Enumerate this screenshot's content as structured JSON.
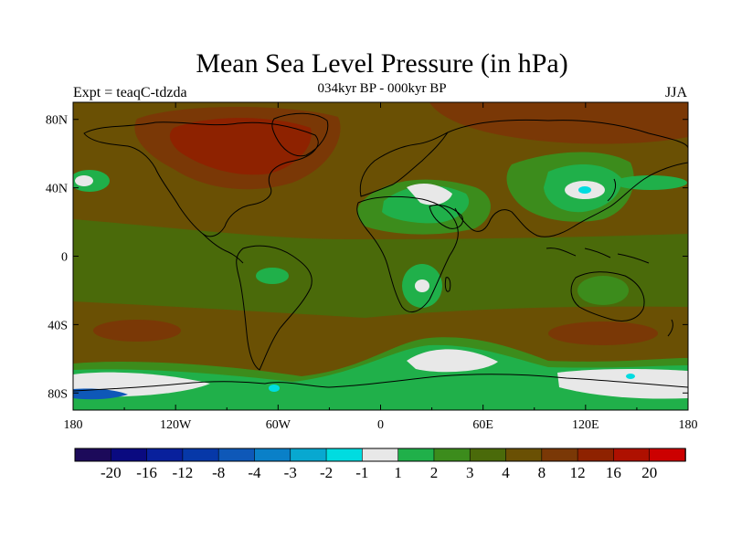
{
  "header": {
    "title": "Mean Sea Level Pressure (in hPa)",
    "subtitle": "034kyr BP - 000kyr BP",
    "experiment": "Expt = teaqC-tdzda",
    "season": "JJA"
  },
  "map": {
    "projection": "cylindrical equidistant",
    "lon_range": [
      -180,
      180
    ],
    "lat_range": [
      -90,
      90
    ],
    "x_ticks": [
      {
        "lon": -180,
        "label": "180"
      },
      {
        "lon": -120,
        "label": "120W"
      },
      {
        "lon": -60,
        "label": "60W"
      },
      {
        "lon": 0,
        "label": "0"
      },
      {
        "lon": 60,
        "label": "60E"
      },
      {
        "lon": 120,
        "label": "120E"
      },
      {
        "lon": 180,
        "label": "180"
      }
    ],
    "y_ticks": [
      {
        "lat": 80,
        "label": "80N"
      },
      {
        "lat": 40,
        "label": "40N"
      },
      {
        "lat": 0,
        "label": "0"
      },
      {
        "lat": -40,
        "label": "40S"
      },
      {
        "lat": -80,
        "label": "80S"
      }
    ]
  },
  "colorbar": {
    "colors": [
      "#1c0a5a",
      "#0a0a80",
      "#08209c",
      "#0638a8",
      "#0e58b8",
      "#0a80c8",
      "#08a8d0",
      "#00dce0",
      "#e8e8e8",
      "#20b04a",
      "#3c8c1c",
      "#4a6a0a",
      "#6a5004",
      "#7a3806",
      "#8e2200",
      "#ae1000",
      "#cc0000"
    ],
    "labels": [
      "-20",
      "-16",
      "-12",
      "-8",
      "-4",
      "-3",
      "-2",
      "-1",
      "1",
      "2",
      "3",
      "4",
      "8",
      "12",
      "16",
      "20"
    ]
  }
}
